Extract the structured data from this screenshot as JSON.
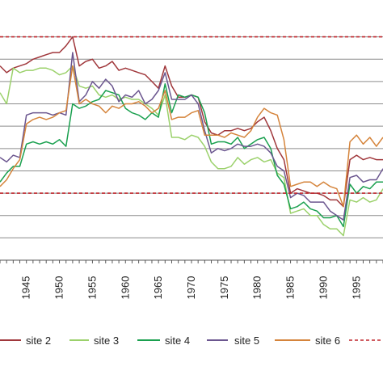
{
  "chart_data": {
    "type": "line",
    "title": "",
    "xlabel": "",
    "ylabel": "",
    "x_tick_labels": [
      "1945",
      "1950",
      "1955",
      "1960",
      "1965",
      "1970",
      "1975",
      "1980",
      "1985",
      "1990",
      "1995"
    ],
    "xlim": [
      1941,
      1999
    ],
    "ylim": [
      0,
      11
    ],
    "grid": "horizontal",
    "legend": "bottom",
    "series": [
      {
        "name": "site 2",
        "color": "#a0373b",
        "x": [
          1941,
          1942,
          1943,
          1944,
          1945,
          1946,
          1947,
          1948,
          1949,
          1950,
          1951,
          1952,
          1953,
          1954,
          1955,
          1956,
          1957,
          1958,
          1959,
          1960,
          1961,
          1962,
          1963,
          1964,
          1965,
          1966,
          1967,
          1968,
          1969,
          1970,
          1971,
          1972,
          1973,
          1974,
          1975,
          1976,
          1977,
          1978,
          1979,
          1980,
          1981,
          1982,
          1983,
          1984,
          1985,
          1986,
          1987,
          1988,
          1989,
          1990,
          1991,
          1992,
          1993,
          1994,
          1995,
          1996,
          1997,
          1998,
          1999
        ],
        "y": [
          8.7,
          8.4,
          8.6,
          8.7,
          8.8,
          9.0,
          9.1,
          9.2,
          9.3,
          9.3,
          9.6,
          10.0,
          8.7,
          8.9,
          9.0,
          8.6,
          8.7,
          8.9,
          8.5,
          8.6,
          8.5,
          8.4,
          8.3,
          8.0,
          7.7,
          8.7,
          7.8,
          7.3,
          7.3,
          7.4,
          7.3,
          6.2,
          5.7,
          5.6,
          5.8,
          5.8,
          5.9,
          5.8,
          5.9,
          6.2,
          6.4,
          5.8,
          5.0,
          4.5,
          3.0,
          3.2,
          3.1,
          3.0,
          3.0,
          2.9,
          2.7,
          2.7,
          2.4,
          4.5,
          4.7,
          4.5,
          4.6,
          4.5,
          4.5
        ]
      },
      {
        "name": "site 3",
        "color": "#9bd16b",
        "x": [
          1941,
          1942,
          1943,
          1944,
          1945,
          1946,
          1947,
          1948,
          1949,
          1950,
          1951,
          1952,
          1953,
          1954,
          1955,
          1956,
          1957,
          1958,
          1959,
          1960,
          1961,
          1962,
          1963,
          1964,
          1965,
          1966,
          1967,
          1968,
          1969,
          1970,
          1971,
          1972,
          1973,
          1974,
          1975,
          1976,
          1977,
          1978,
          1979,
          1980,
          1981,
          1982,
          1983,
          1984,
          1985,
          1986,
          1987,
          1988,
          1989,
          1990,
          1991,
          1992,
          1993,
          1994,
          1995,
          1996,
          1997,
          1998,
          1999
        ],
        "y": [
          7.5,
          7.0,
          8.6,
          8.4,
          8.5,
          8.5,
          8.6,
          8.6,
          8.5,
          8.3,
          8.4,
          8.7,
          7.8,
          7.7,
          7.8,
          7.4,
          7.3,
          7.4,
          7.2,
          7.3,
          7.2,
          7.2,
          7.0,
          6.8,
          6.5,
          7.4,
          5.5,
          5.5,
          5.4,
          5.6,
          5.5,
          5.1,
          4.4,
          4.1,
          4.1,
          4.2,
          4.6,
          4.3,
          4.5,
          4.6,
          4.4,
          4.5,
          3.9,
          3.7,
          2.1,
          2.2,
          2.3,
          2.0,
          2.0,
          1.6,
          1.4,
          1.4,
          1.1,
          2.7,
          2.6,
          2.8,
          2.6,
          2.7,
          3.2
        ]
      },
      {
        "name": "site 4",
        "color": "#1aa04f",
        "x": [
          1941,
          1942,
          1943,
          1944,
          1945,
          1946,
          1947,
          1948,
          1949,
          1950,
          1951,
          1952,
          1953,
          1954,
          1955,
          1956,
          1957,
          1958,
          1959,
          1960,
          1961,
          1962,
          1963,
          1964,
          1965,
          1966,
          1967,
          1968,
          1969,
          1970,
          1971,
          1972,
          1973,
          1974,
          1975,
          1976,
          1977,
          1978,
          1979,
          1980,
          1981,
          1982,
          1983,
          1984,
          1985,
          1986,
          1987,
          1988,
          1989,
          1990,
          1991,
          1992,
          1993,
          1994,
          1995,
          1996,
          1997,
          1998,
          1999
        ],
        "y": [
          3.5,
          3.9,
          4.2,
          4.2,
          5.2,
          5.3,
          5.2,
          5.3,
          5.2,
          5.4,
          5.1,
          7.0,
          6.8,
          6.9,
          7.1,
          7.2,
          7.6,
          7.5,
          7.4,
          6.8,
          6.6,
          6.5,
          6.3,
          6.6,
          6.4,
          7.9,
          6.6,
          7.4,
          7.3,
          7.4,
          7.3,
          6.6,
          5.2,
          5.3,
          5.3,
          5.2,
          5.5,
          5.0,
          5.2,
          5.4,
          5.5,
          5.0,
          3.8,
          3.4,
          2.3,
          2.4,
          2.6,
          2.3,
          2.2,
          1.9,
          1.9,
          2.0,
          1.5,
          3.4,
          3.0,
          3.3,
          3.2,
          3.5,
          3.5
        ]
      },
      {
        "name": "site 5",
        "color": "#6b568f",
        "x": [
          1941,
          1942,
          1943,
          1944,
          1945,
          1946,
          1947,
          1948,
          1949,
          1950,
          1951,
          1952,
          1953,
          1954,
          1955,
          1956,
          1957,
          1958,
          1959,
          1960,
          1961,
          1962,
          1963,
          1964,
          1965,
          1966,
          1967,
          1968,
          1969,
          1970,
          1971,
          1972,
          1973,
          1974,
          1975,
          1976,
          1977,
          1978,
          1979,
          1980,
          1981,
          1982,
          1983,
          1984,
          1985,
          1986,
          1987,
          1988,
          1989,
          1990,
          1991,
          1992,
          1993,
          1994,
          1995,
          1996,
          1997,
          1998,
          1999
        ],
        "y": [
          4.6,
          4.4,
          4.7,
          4.6,
          6.5,
          6.6,
          6.6,
          6.6,
          6.5,
          6.6,
          6.5,
          9.3,
          7.1,
          7.4,
          8.0,
          7.7,
          8.1,
          7.8,
          7.1,
          7.4,
          7.3,
          7.6,
          7.0,
          7.2,
          7.6,
          8.4,
          7.2,
          7.2,
          7.2,
          7.4,
          7.0,
          5.8,
          4.8,
          5.0,
          4.9,
          5.0,
          5.2,
          5.1,
          5.1,
          5.2,
          5.1,
          4.8,
          4.2,
          4.0,
          2.8,
          3.0,
          2.9,
          2.6,
          2.6,
          2.6,
          2.2,
          2.0,
          1.8,
          3.7,
          3.8,
          3.5,
          3.6,
          3.6,
          4.1
        ]
      },
      {
        "name": "site 6",
        "color": "#d5843b",
        "x": [
          1941,
          1942,
          1943,
          1944,
          1945,
          1946,
          1947,
          1948,
          1949,
          1950,
          1951,
          1952,
          1953,
          1954,
          1955,
          1956,
          1957,
          1958,
          1959,
          1960,
          1961,
          1962,
          1963,
          1964,
          1965,
          1966,
          1967,
          1968,
          1969,
          1970,
          1971,
          1972,
          1973,
          1974,
          1975,
          1976,
          1977,
          1978,
          1979,
          1980,
          1981,
          1982,
          1983,
          1984,
          1985,
          1986,
          1987,
          1988,
          1989,
          1990,
          1991,
          1992,
          1993,
          1994,
          1995,
          1996,
          1997,
          1998,
          1999
        ],
        "y": [
          3.3,
          3.6,
          4.1,
          4.5,
          6.1,
          6.3,
          6.4,
          6.3,
          6.4,
          6.6,
          6.7,
          8.7,
          7.0,
          7.2,
          7.0,
          6.9,
          6.6,
          6.9,
          6.8,
          7.0,
          7.0,
          7.1,
          6.9,
          6.6,
          6.8,
          7.6,
          6.3,
          6.4,
          6.4,
          6.6,
          6.7,
          5.6,
          5.6,
          5.6,
          5.5,
          5.7,
          5.6,
          5.5,
          5.8,
          6.4,
          6.8,
          6.6,
          6.5,
          5.4,
          3.3,
          3.4,
          3.5,
          3.5,
          3.3,
          3.5,
          3.3,
          3.2,
          2.4,
          5.3,
          5.6,
          5.2,
          5.5,
          5.1,
          5.5
        ]
      },
      {
        "name": "",
        "color": "#c0272d",
        "dashed": true,
        "x": [
          1941,
          1999
        ],
        "y": [
          10.0,
          10.0
        ]
      },
      {
        "name": "",
        "color": "#c0272d",
        "dashed": true,
        "x": [
          1941,
          1999
        ],
        "y": [
          3.0,
          3.0
        ]
      }
    ]
  },
  "legend": {
    "items": [
      {
        "label": "site 2",
        "color": "#a0373b",
        "dashed": false
      },
      {
        "label": "site 3",
        "color": "#9bd16b",
        "dashed": false
      },
      {
        "label": "site 4",
        "color": "#1aa04f",
        "dashed": false
      },
      {
        "label": "site 5",
        "color": "#6b568f",
        "dashed": false
      },
      {
        "label": "site 6",
        "color": "#d5843b",
        "dashed": false
      },
      {
        "label": "",
        "color": "#c0272d",
        "dashed": true
      }
    ]
  },
  "colors": {
    "gridline": "#8c8c8c",
    "axis": "#5a5a5a",
    "background": "#ffffff"
  }
}
